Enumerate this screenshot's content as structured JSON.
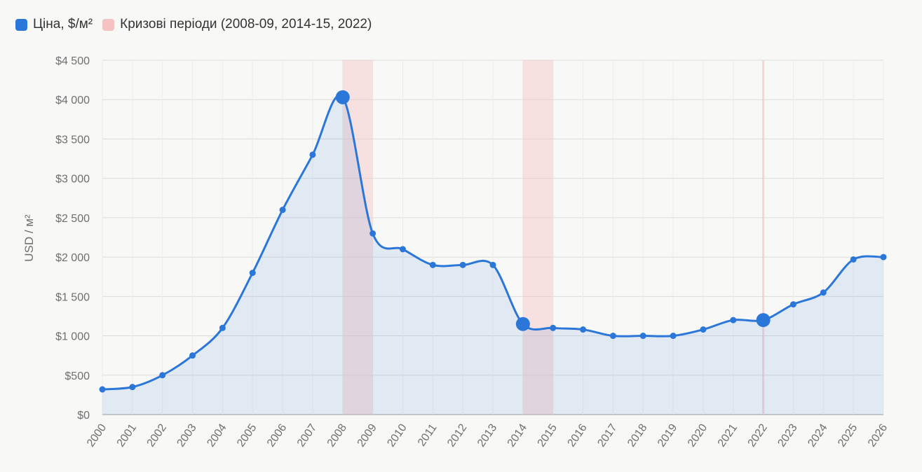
{
  "chart_data": {
    "type": "line",
    "legend": [
      {
        "label": "Ціна, $/м²",
        "color": "#2b77d9"
      },
      {
        "label": "Кризові періоди (2008-09, 2014-15, 2022)",
        "color": "#f4c2c2"
      }
    ],
    "ylabel": "USD / м²",
    "ylim": [
      0,
      4500
    ],
    "yticks": [
      {
        "value": 0,
        "label": "$0"
      },
      {
        "value": 500,
        "label": "$500"
      },
      {
        "value": 1000,
        "label": "$1 000"
      },
      {
        "value": 1500,
        "label": "$1 500"
      },
      {
        "value": 2000,
        "label": "$2 000"
      },
      {
        "value": 2500,
        "label": "$2 500"
      },
      {
        "value": 3000,
        "label": "$3 000"
      },
      {
        "value": 3500,
        "label": "$3 500"
      },
      {
        "value": 4000,
        "label": "$4 000"
      },
      {
        "value": 4500,
        "label": "$4 500"
      }
    ],
    "x": [
      "2000",
      "2001",
      "2002",
      "2003",
      "2004",
      "2005",
      "2006",
      "2007",
      "2008",
      "2009",
      "2010",
      "2011",
      "2012",
      "2013",
      "2014",
      "2015",
      "2016",
      "2017",
      "2018",
      "2019",
      "2020",
      "2021",
      "2022",
      "2023",
      "2024",
      "2025",
      "2026"
    ],
    "series": [
      {
        "name": "Ціна, $/м²",
        "color": "#2b77d9",
        "values": [
          320,
          350,
          500,
          750,
          1100,
          1800,
          2600,
          3300,
          4030,
          2300,
          2100,
          1900,
          1900,
          1900,
          1150,
          1100,
          1080,
          1000,
          1000,
          1000,
          1080,
          1200,
          1200,
          1400,
          1550,
          1970,
          2000
        ]
      }
    ],
    "highlighted_points": [
      "2008",
      "2014",
      "2022"
    ],
    "crisis_periods": [
      {
        "from": "2008",
        "to": "2009"
      },
      {
        "from": "2014",
        "to": "2015"
      },
      {
        "from": "2022",
        "to": "2022"
      }
    ],
    "grid": true,
    "area_fill": true,
    "legend_position": "top-left"
  }
}
